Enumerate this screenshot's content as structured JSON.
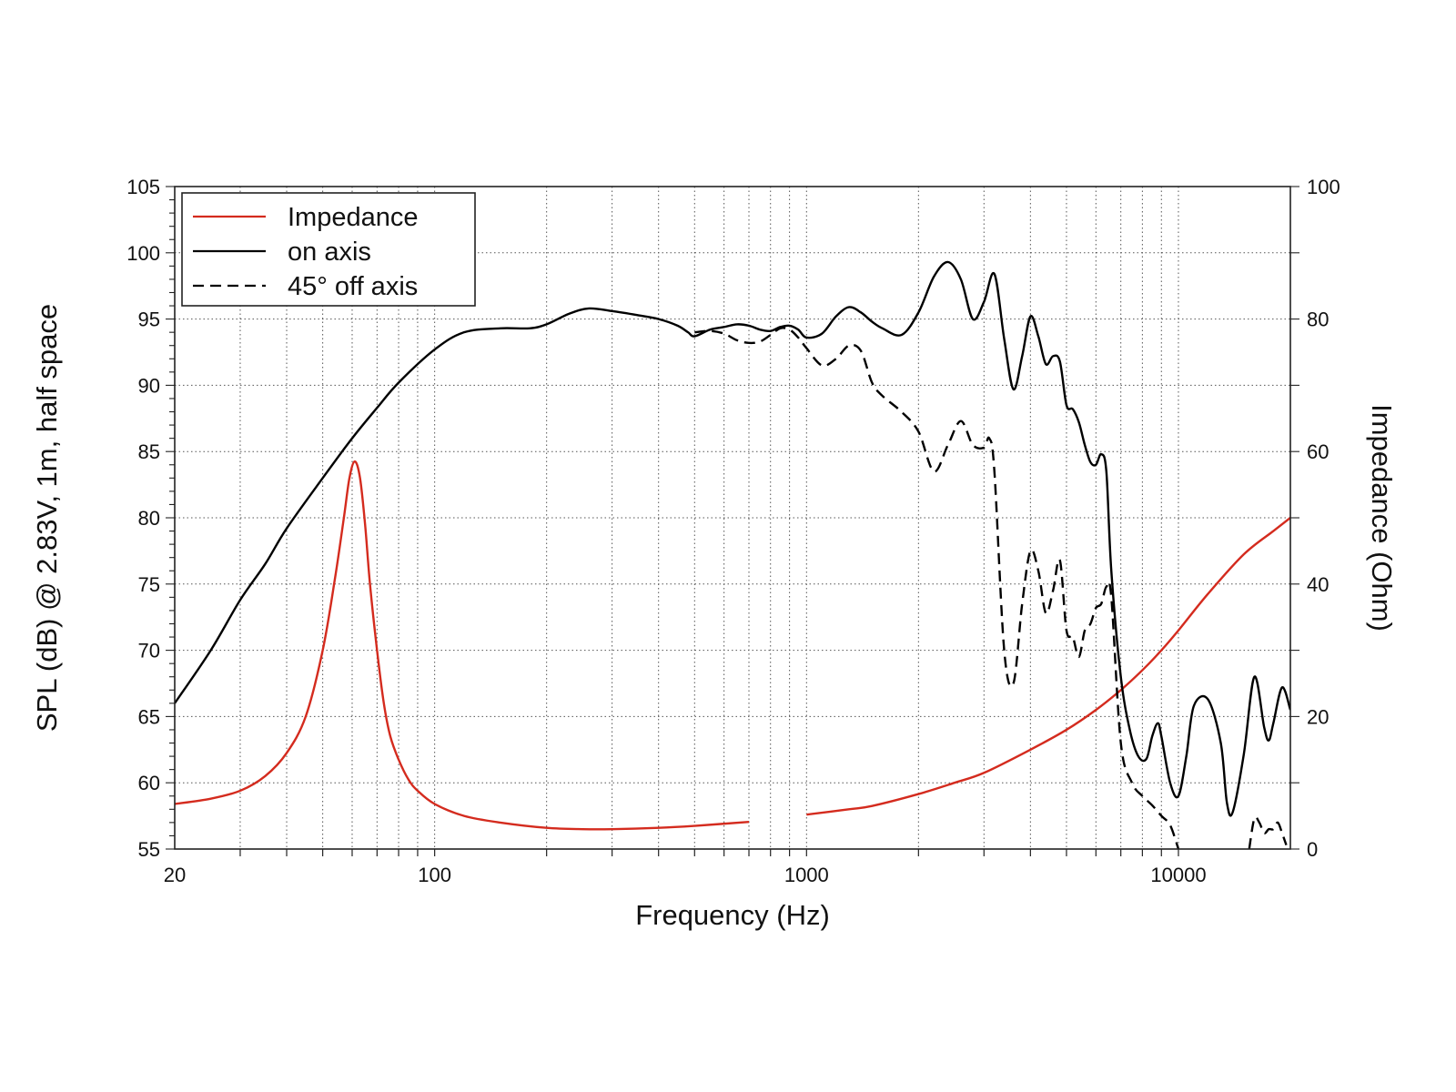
{
  "chart_data": {
    "type": "line",
    "title": "",
    "xlabel": "Frequency (Hz)",
    "ylabel": "SPL (dB) @ 2.83V, 1m, half space",
    "y2label": "Impedance (Ohm)",
    "xscale": "log",
    "xlim": [
      20,
      20000
    ],
    "ylim": [
      55,
      105
    ],
    "y2lim": [
      0,
      100
    ],
    "grid": true,
    "legend_position": "top-left",
    "x_ticks": [
      "20",
      "100",
      "1000",
      "10000"
    ],
    "y_ticks": [
      "55",
      "60",
      "65",
      "70",
      "75",
      "80",
      "85",
      "90",
      "95",
      "100",
      "105"
    ],
    "y2_ticks": [
      "0",
      "20",
      "40",
      "60",
      "80",
      "100"
    ],
    "series": [
      {
        "name": "Impedance",
        "axis": "right",
        "color": "#d42b1e",
        "style": "solid",
        "x": [
          20,
          25,
          30,
          35,
          40,
          45,
          50,
          54,
          57,
          59,
          61,
          63,
          65,
          67,
          70,
          73,
          76,
          80,
          85,
          90,
          100,
          120,
          150,
          200,
          250,
          300,
          400,
          500,
          700,
          1000,
          1300,
          1500,
          2000,
          2500,
          3000,
          4000,
          5000,
          6000,
          7000,
          8000,
          9000,
          10000,
          12000,
          15000,
          18000,
          20000
        ],
        "values": [
          6.8,
          7.6,
          8.8,
          11,
          14.5,
          20,
          30,
          41,
          50,
          56,
          58.5,
          56,
          49,
          40,
          30,
          22,
          17,
          13.5,
          10.5,
          8.8,
          6.8,
          5,
          4,
          3.2,
          3,
          3,
          3.2,
          3.5,
          4.1,
          5.2,
          6,
          6.5,
          8.3,
          10,
          11.5,
          15,
          18,
          21,
          24,
          27,
          30,
          33,
          38.5,
          44.5,
          48,
          50
        ]
      },
      {
        "name": "on axis",
        "axis": "left",
        "color": "#000000",
        "style": "solid",
        "x": [
          20,
          25,
          30,
          35,
          40,
          50,
          60,
          70,
          80,
          100,
          120,
          150,
          180,
          200,
          230,
          260,
          300,
          350,
          400,
          450,
          480,
          500,
          550,
          600,
          650,
          700,
          750,
          800,
          850,
          900,
          950,
          1000,
          1100,
          1200,
          1300,
          1400,
          1500,
          1600,
          1800,
          2000,
          2200,
          2400,
          2600,
          2800,
          3000,
          3200,
          3400,
          3600,
          3800,
          4000,
          4200,
          4400,
          4600,
          4800,
          5000,
          5200,
          5400,
          5600,
          5800,
          6000,
          6200,
          6400,
          6600,
          7000,
          7400,
          7800,
          8200,
          8500,
          8800,
          9000,
          9500,
          10000,
          10500,
          11000,
          12000,
          13000,
          13500,
          14000,
          15000,
          16000,
          17000,
          17500,
          18000,
          19000,
          20000
        ],
        "values": [
          66,
          70,
          73.8,
          76.5,
          79.2,
          83,
          86,
          88.3,
          90.2,
          92.7,
          94,
          94.3,
          94.3,
          94.6,
          95.4,
          95.8,
          95.6,
          95.3,
          95,
          94.5,
          94,
          93.7,
          94.2,
          94.4,
          94.6,
          94.5,
          94.2,
          94.1,
          94.4,
          94.5,
          94.2,
          93.6,
          93.9,
          95.2,
          95.9,
          95.5,
          94.8,
          94.3,
          93.8,
          95.5,
          98.2,
          99.3,
          98,
          95,
          96.3,
          98.4,
          93.5,
          89.7,
          92.2,
          95.2,
          93.7,
          91.6,
          92.2,
          91.8,
          88.5,
          88.2,
          87.2,
          85.5,
          84.2,
          84,
          84.8,
          83.5,
          76,
          68,
          64,
          62,
          61.8,
          63.5,
          64.5,
          63.5,
          60,
          59,
          62,
          65.8,
          66.3,
          63,
          58.5,
          57.8,
          62.2,
          68,
          64.2,
          63.2,
          64.5,
          67.2,
          65.5
        ]
      },
      {
        "name": "45° off axis",
        "axis": "left",
        "color": "#000000",
        "style": "dashed",
        "x": [
          500,
          550,
          600,
          650,
          700,
          750,
          800,
          850,
          900,
          950,
          1000,
          1100,
          1200,
          1300,
          1400,
          1500,
          1600,
          1800,
          2000,
          2200,
          2400,
          2600,
          2800,
          3000,
          3100,
          3200,
          3400,
          3600,
          3800,
          4000,
          4200,
          4400,
          4600,
          4800,
          5000,
          5200,
          5400,
          5600,
          5800,
          6000,
          6200,
          6400,
          6600,
          7000,
          7500,
          8000,
          8500,
          9000,
          9500,
          10000,
          15500,
          16000,
          16500,
          17000,
          17500,
          18000,
          18500,
          19000,
          19500
        ],
        "values": [
          94,
          94.1,
          93.9,
          93.4,
          93.2,
          93.3,
          93.8,
          94.3,
          94.2,
          93.6,
          92.8,
          91.5,
          92,
          93,
          92.6,
          90.2,
          89.2,
          88,
          86.5,
          83.5,
          85.5,
          87.3,
          85.5,
          85.3,
          86,
          83.5,
          70,
          67.5,
          73.5,
          77.5,
          76,
          72.8,
          74.5,
          76.8,
          71.5,
          71,
          69.5,
          71.5,
          72,
          73.2,
          73.5,
          74.8,
          74,
          63,
          60,
          59,
          58.3,
          57.5,
          56.8,
          55,
          55,
          57.3,
          57,
          56.2,
          56.5,
          56.5,
          57,
          56.2,
          55.3
        ]
      }
    ]
  }
}
